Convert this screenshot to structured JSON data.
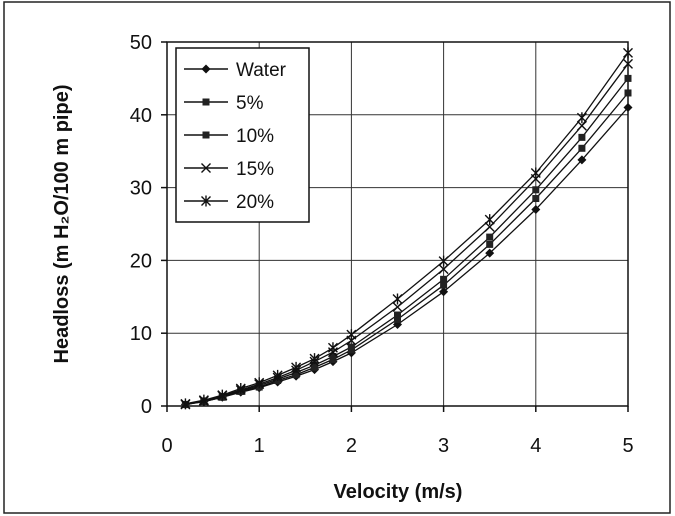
{
  "chart_data": {
    "type": "line",
    "title": "",
    "xlabel": "Velocity (m/s)",
    "ylabel": "Headloss (m H₂O/100 m pipe)",
    "xlim": [
      0,
      5
    ],
    "ylim": [
      0,
      50
    ],
    "xticks": [
      "0",
      "1",
      "2",
      "3",
      "4",
      "5"
    ],
    "yticks": [
      "0",
      "10",
      "20",
      "30",
      "40",
      "50"
    ],
    "grid": true,
    "legend_position": "top-left",
    "x": [
      0.2,
      0.4,
      0.6,
      0.8,
      1.0,
      1.2,
      1.4,
      1.6,
      1.8,
      2.0,
      2.5,
      3.0,
      3.5,
      4.0,
      4.5,
      5.0
    ],
    "series": [
      {
        "name": "Water",
        "marker": "diamond",
        "values": [
          0.2,
          0.6,
          1.2,
          1.9,
          2.5,
          3.3,
          4.1,
          5.0,
          6.1,
          7.3,
          11.2,
          15.7,
          21.0,
          27.0,
          33.8,
          41.0
        ]
      },
      {
        "name": "5%",
        "marker": "square",
        "values": [
          0.2,
          0.6,
          1.2,
          2.0,
          2.6,
          3.5,
          4.3,
          5.3,
          6.4,
          7.7,
          11.9,
          16.6,
          22.2,
          28.5,
          35.4,
          43.0
        ]
      },
      {
        "name": "10%",
        "marker": "square",
        "values": [
          0.2,
          0.7,
          1.3,
          2.1,
          2.8,
          3.7,
          4.6,
          5.6,
          6.8,
          8.1,
          12.5,
          17.4,
          23.2,
          29.7,
          36.9,
          45.0
        ]
      },
      {
        "name": "15%",
        "marker": "x",
        "values": [
          0.2,
          0.7,
          1.4,
          2.2,
          3.0,
          3.9,
          4.9,
          6.1,
          7.4,
          9.0,
          13.6,
          18.8,
          24.6,
          31.2,
          38.5,
          47.0
        ]
      },
      {
        "name": "20%",
        "marker": "asterisk",
        "values": [
          0.3,
          0.8,
          1.5,
          2.4,
          3.2,
          4.2,
          5.3,
          6.5,
          8.0,
          9.8,
          14.7,
          19.9,
          25.6,
          32.0,
          39.6,
          48.5
        ]
      }
    ]
  }
}
